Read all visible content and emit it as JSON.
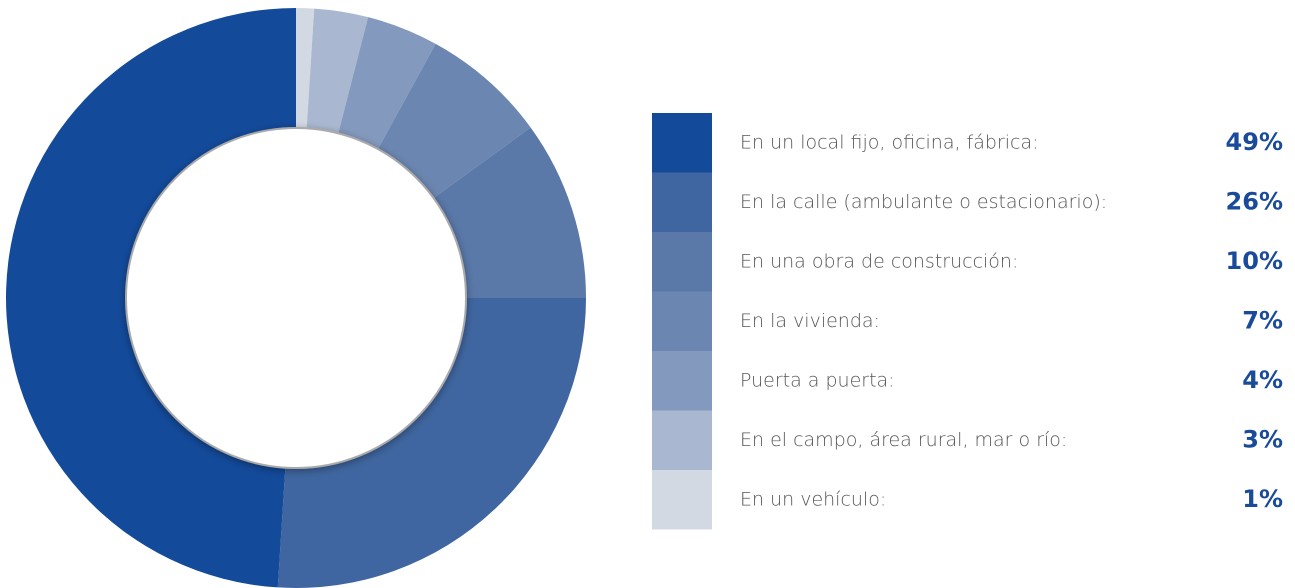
{
  "chart_data": {
    "type": "donut",
    "categories": [
      "En un local fijo, oficina, fábrica:",
      "En la calle (ambulante o estacionario):",
      "En una obra de construcción:",
      "En la vivienda:",
      "Puerta a puerta:",
      "En el campo, área rural, mar o río:",
      "En un vehículo:"
    ],
    "values": [
      49,
      26,
      10,
      7,
      4,
      3,
      1
    ],
    "value_labels": [
      "49%",
      "26%",
      "10%",
      "7%",
      "4%",
      "3%",
      "1%"
    ],
    "colors": [
      "#134a9a",
      "#3f66a0",
      "#5a78a8",
      "#6b86b0",
      "#8399bd",
      "#a9b8d0",
      "#d3d9e3"
    ],
    "direction": "reverse-clockwise-from-top"
  }
}
